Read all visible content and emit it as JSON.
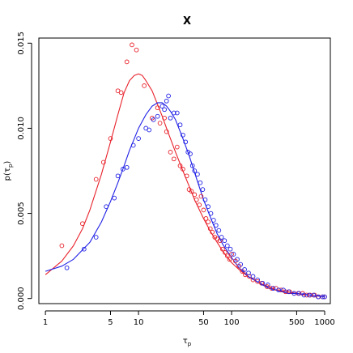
{
  "chart_data": {
    "type": "scatter",
    "title": "X",
    "xlabel": "τ_p",
    "ylabel": "p(τ_p)",
    "x_scale": "log",
    "xlim": [
      0.85,
      1150
    ],
    "ylim": [
      -0.0003,
      0.0153
    ],
    "x_ticks": [
      1,
      5,
      10,
      50,
      100,
      500,
      1000
    ],
    "x_tick_labels": [
      "1",
      "5",
      "10",
      "50",
      "100",
      "500",
      "1000"
    ],
    "y_ticks": [
      0.0,
      0.005,
      0.01,
      0.015
    ],
    "y_tick_labels": [
      "0.000",
      "0.005",
      "0.010",
      "0.015"
    ],
    "grid": false,
    "colors": {
      "red": "#e8222b",
      "blue": "#2020e6"
    },
    "series": [
      {
        "color": "#e8222b",
        "points": [
          [
            1.5,
            0.0031
          ],
          [
            2.5,
            0.0044
          ],
          [
            3.5,
            0.007
          ],
          [
            4.2,
            0.008
          ],
          [
            5.0,
            0.0094
          ],
          [
            6.0,
            0.0122
          ],
          [
            6.5,
            0.0121
          ],
          [
            7.5,
            0.0139
          ],
          [
            8.5,
            0.0149
          ],
          [
            9.5,
            0.0146
          ],
          [
            11.5,
            0.0125
          ],
          [
            14.0,
            0.0106
          ],
          [
            16.0,
            0.0112
          ],
          [
            17.0,
            0.0103
          ],
          [
            19.0,
            0.0106
          ],
          [
            20.0,
            0.0098
          ],
          [
            22.0,
            0.0086
          ],
          [
            24.0,
            0.0082
          ],
          [
            26.0,
            0.0089
          ],
          [
            28.0,
            0.0078
          ],
          [
            30.0,
            0.0076
          ],
          [
            33.0,
            0.0072
          ],
          [
            35.0,
            0.0064
          ],
          [
            37.0,
            0.0063
          ],
          [
            40.0,
            0.0061
          ],
          [
            42.0,
            0.0058
          ],
          [
            45.0,
            0.0055
          ],
          [
            47.0,
            0.006
          ],
          [
            50.0,
            0.0052
          ],
          [
            53.0,
            0.0047
          ],
          [
            56.0,
            0.0045
          ],
          [
            59.0,
            0.0041
          ],
          [
            62.0,
            0.0039
          ],
          [
            66.0,
            0.0036
          ],
          [
            70.0,
            0.0035
          ],
          [
            75.0,
            0.0034
          ],
          [
            80.0,
            0.0029
          ],
          [
            85.0,
            0.0027
          ],
          [
            90.0,
            0.0025
          ],
          [
            95.0,
            0.0023
          ],
          [
            100.0,
            0.0026
          ],
          [
            110.0,
            0.0022
          ],
          [
            120.0,
            0.0019
          ],
          [
            130.0,
            0.0016
          ],
          [
            140.0,
            0.0014
          ],
          [
            155.0,
            0.0013
          ],
          [
            170.0,
            0.0011
          ],
          [
            190.0,
            0.001
          ],
          [
            210.0,
            0.0009
          ],
          [
            240.0,
            0.0007
          ],
          [
            270.0,
            0.0006
          ],
          [
            300.0,
            0.0006
          ],
          [
            340.0,
            0.0005
          ],
          [
            380.0,
            0.0004
          ],
          [
            420.0,
            0.0004
          ],
          [
            470.0,
            0.0003
          ],
          [
            520.0,
            0.0003
          ],
          [
            580.0,
            0.0003
          ],
          [
            640.0,
            0.0002
          ],
          [
            700.0,
            0.0002
          ],
          [
            780.0,
            0.0002
          ],
          [
            860.0,
            0.0001
          ],
          [
            950.0,
            0.0001
          ],
          [
            1000.0,
            0.0001
          ]
        ],
        "curve": [
          [
            1.0,
            0.0014
          ],
          [
            1.5,
            0.0022
          ],
          [
            2.0,
            0.0031
          ],
          [
            2.5,
            0.0041
          ],
          [
            3.0,
            0.0052
          ],
          [
            4.0,
            0.0073
          ],
          [
            5.0,
            0.0092
          ],
          [
            6.0,
            0.0108
          ],
          [
            7.0,
            0.0121
          ],
          [
            8.0,
            0.0128
          ],
          [
            9.0,
            0.0131
          ],
          [
            10.0,
            0.0132
          ],
          [
            11.0,
            0.0131
          ],
          [
            12.0,
            0.0128
          ],
          [
            14.0,
            0.0122
          ],
          [
            16.0,
            0.0114
          ],
          [
            18.0,
            0.0107
          ],
          [
            20.0,
            0.01
          ],
          [
            25.0,
            0.0086
          ],
          [
            30.0,
            0.0075
          ],
          [
            35.0,
            0.0066
          ],
          [
            40.0,
            0.0058
          ],
          [
            50.0,
            0.0047
          ],
          [
            60.0,
            0.0039
          ],
          [
            70.0,
            0.0033
          ],
          [
            80.0,
            0.0028
          ],
          [
            100.0,
            0.0021
          ],
          [
            120.0,
            0.0017
          ],
          [
            150.0,
            0.0013
          ],
          [
            200.0,
            0.0009
          ],
          [
            250.0,
            0.0007
          ],
          [
            300.0,
            0.0005
          ],
          [
            400.0,
            0.0004
          ],
          [
            500.0,
            0.0003
          ],
          [
            700.0,
            0.0002
          ],
          [
            1000.0,
            0.0001
          ]
        ]
      },
      {
        "color": "#2020e6",
        "points": [
          [
            1.7,
            0.0018
          ],
          [
            2.6,
            0.0029
          ],
          [
            3.5,
            0.0036
          ],
          [
            4.5,
            0.0054
          ],
          [
            5.5,
            0.0059
          ],
          [
            6.0,
            0.0072
          ],
          [
            6.8,
            0.0076
          ],
          [
            7.5,
            0.0077
          ],
          [
            8.8,
            0.009
          ],
          [
            10.0,
            0.0094
          ],
          [
            12.0,
            0.01
          ],
          [
            13.0,
            0.0099
          ],
          [
            14.5,
            0.0105
          ],
          [
            16.0,
            0.0107
          ],
          [
            18.0,
            0.0113
          ],
          [
            19.0,
            0.0111
          ],
          [
            20.0,
            0.0116
          ],
          [
            21.0,
            0.0119
          ],
          [
            22.0,
            0.0106
          ],
          [
            24.0,
            0.0109
          ],
          [
            26.0,
            0.0109
          ],
          [
            28.0,
            0.0102
          ],
          [
            30.0,
            0.0096
          ],
          [
            32.0,
            0.0092
          ],
          [
            34.0,
            0.0086
          ],
          [
            36.0,
            0.0085
          ],
          [
            38.0,
            0.0078
          ],
          [
            40.0,
            0.0075
          ],
          [
            43.0,
            0.0073
          ],
          [
            46.0,
            0.0068
          ],
          [
            49.0,
            0.0064
          ],
          [
            52.0,
            0.0058
          ],
          [
            56.0,
            0.0054
          ],
          [
            60.0,
            0.005
          ],
          [
            64.0,
            0.0046
          ],
          [
            68.0,
            0.0043
          ],
          [
            73.0,
            0.004
          ],
          [
            78.0,
            0.0036
          ],
          [
            84.0,
            0.0034
          ],
          [
            90.0,
            0.0031
          ],
          [
            97.0,
            0.0029
          ],
          [
            105.0,
            0.0026
          ],
          [
            115.0,
            0.0023
          ],
          [
            125.0,
            0.002
          ],
          [
            138.0,
            0.0017
          ],
          [
            152.0,
            0.0015
          ],
          [
            170.0,
            0.0013
          ],
          [
            190.0,
            0.0011
          ],
          [
            215.0,
            0.0009
          ],
          [
            245.0,
            0.0008
          ],
          [
            280.0,
            0.0006
          ],
          [
            320.0,
            0.0005
          ],
          [
            360.0,
            0.0005
          ],
          [
            410.0,
            0.0004
          ],
          [
            470.0,
            0.0003
          ],
          [
            530.0,
            0.0003
          ],
          [
            600.0,
            0.0002
          ],
          [
            680.0,
            0.0002
          ],
          [
            760.0,
            0.0002
          ],
          [
            850.0,
            0.0001
          ],
          [
            950.0,
            0.0001
          ],
          [
            1000.0,
            0.0001
          ]
        ],
        "curve": [
          [
            1.0,
            0.0016
          ],
          [
            1.5,
            0.0019
          ],
          [
            2.0,
            0.0023
          ],
          [
            3.0,
            0.0033
          ],
          [
            4.0,
            0.0045
          ],
          [
            5.0,
            0.0057
          ],
          [
            6.0,
            0.0068
          ],
          [
            7.0,
            0.0078
          ],
          [
            8.0,
            0.0087
          ],
          [
            10.0,
            0.01
          ],
          [
            12.0,
            0.0108
          ],
          [
            14.0,
            0.0113
          ],
          [
            16.0,
            0.0115
          ],
          [
            18.0,
            0.0115
          ],
          [
            20.0,
            0.0113
          ],
          [
            22.0,
            0.011
          ],
          [
            25.0,
            0.0105
          ],
          [
            30.0,
            0.0094
          ],
          [
            35.0,
            0.0084
          ],
          [
            40.0,
            0.0074
          ],
          [
            50.0,
            0.0058
          ],
          [
            60.0,
            0.0047
          ],
          [
            70.0,
            0.0038
          ],
          [
            80.0,
            0.0032
          ],
          [
            100.0,
            0.0024
          ],
          [
            120.0,
            0.0018
          ],
          [
            150.0,
            0.0013
          ],
          [
            200.0,
            0.0009
          ],
          [
            250.0,
            0.0006
          ],
          [
            300.0,
            0.0005
          ],
          [
            400.0,
            0.0003
          ],
          [
            500.0,
            0.0003
          ],
          [
            700.0,
            0.0002
          ],
          [
            1000.0,
            0.0001
          ]
        ]
      }
    ]
  }
}
